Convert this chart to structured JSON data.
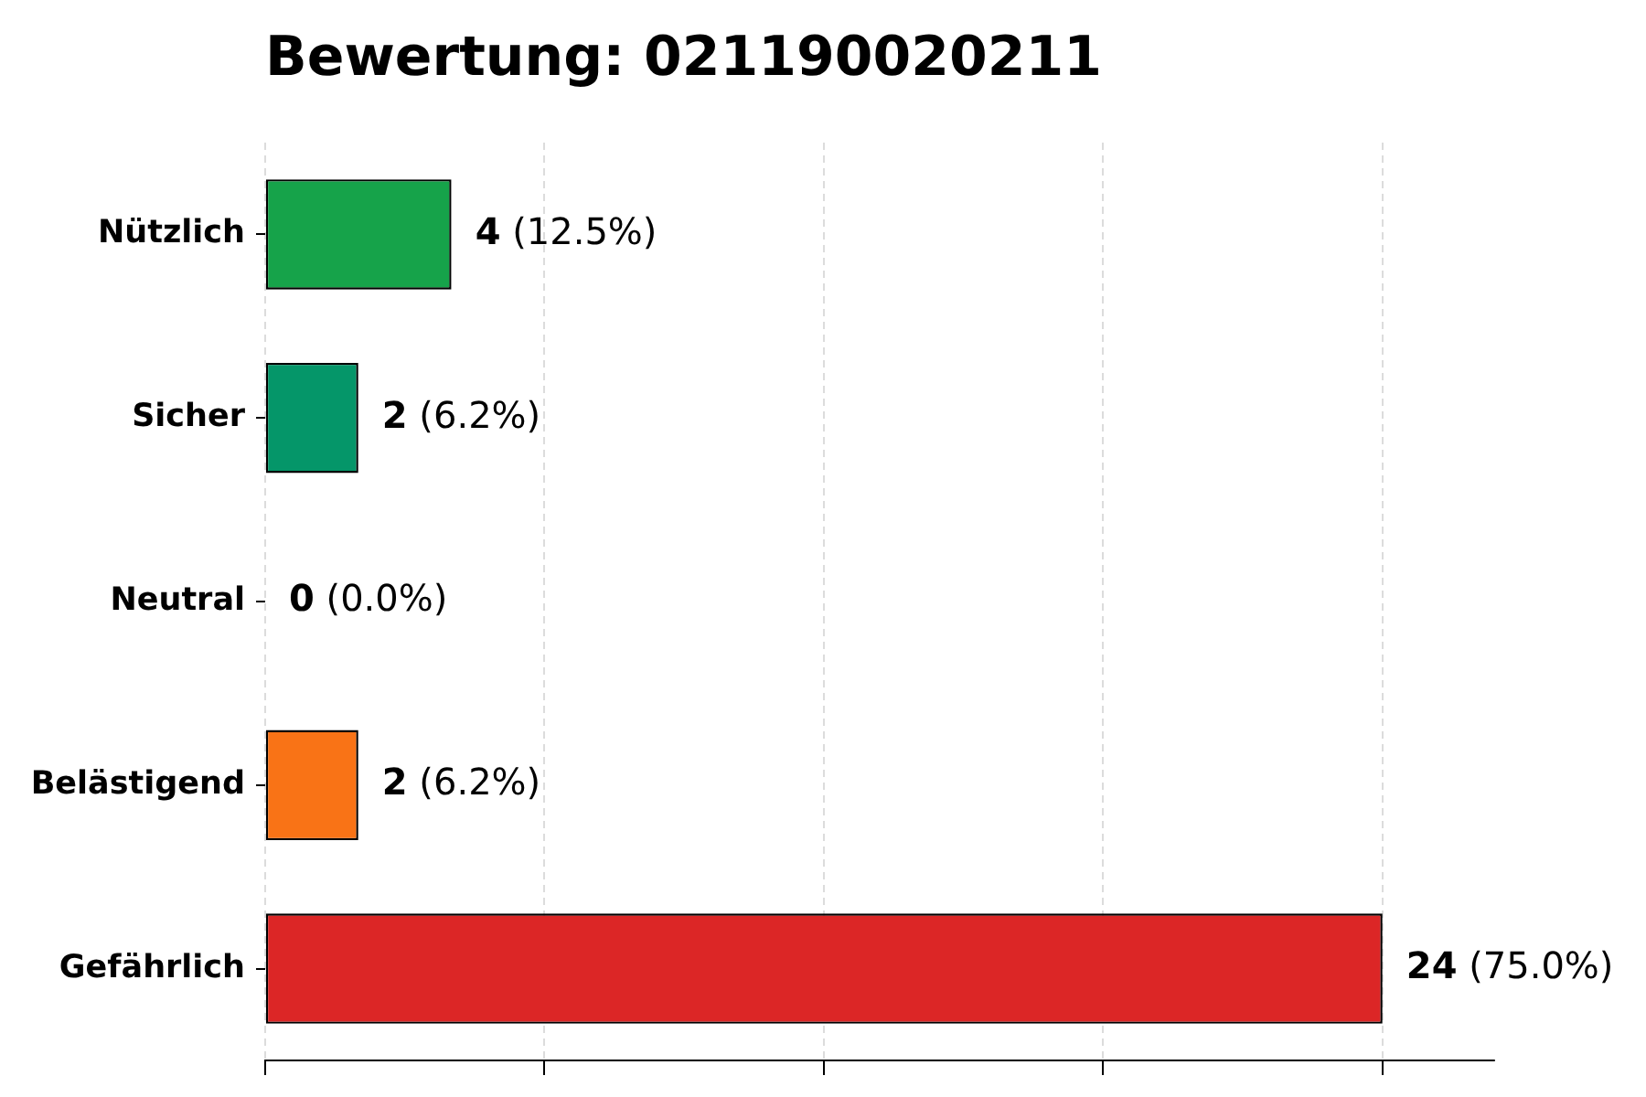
{
  "chart_data": {
    "type": "bar",
    "orientation": "horizontal",
    "title": "Bewertung: 021190020211",
    "categories": [
      "Nützlich",
      "Sicher",
      "Neutral",
      "Belästigend",
      "Gefährlich"
    ],
    "values": [
      4,
      2,
      0,
      2,
      24
    ],
    "colors": [
      "#16a34a",
      "#059669",
      "#6b7280",
      "#f97316",
      "#dc2626"
    ],
    "value_labels": [
      "4 (12.5%)",
      "2 (6.2%)",
      "0 (0.0%)",
      "2 (6.2%)",
      "24 (75.0%)"
    ],
    "xlim": [
      0,
      26.4
    ],
    "xticks": [
      {
        "value": 0,
        "label": null
      },
      {
        "value": 6,
        "label": null
      },
      {
        "value": 12,
        "label": null
      },
      {
        "value": 18,
        "label": null
      },
      {
        "value": 24,
        "label": null
      }
    ],
    "grid": "x",
    "tick_labels": "y"
  }
}
